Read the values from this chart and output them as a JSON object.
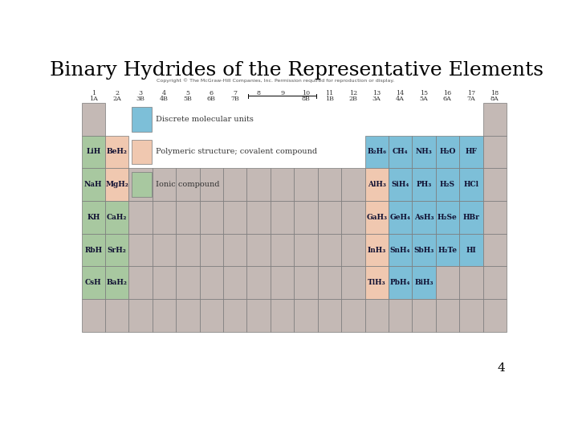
{
  "title": "Binary Hydrides of the Representative Elements",
  "page_num": "4",
  "copyright": "Copyright © The McGraw-Hill Companies, Inc. Permission required for reproduction or display.",
  "bg_color": "#ffffff",
  "cell_border_color": "#7a7a7a",
  "colors": {
    "ionic": "#a8c8a0",
    "polymeric": "#f0c8b0",
    "molecular": "#7dbfd8",
    "empty": "#c4b9b5",
    "white": "#ffffff"
  },
  "legend": [
    {
      "color": "#7dbfd8",
      "label": "Discrete molecular units"
    },
    {
      "color": "#f0c8b0",
      "label": "Polymeric structure; covalent compound"
    },
    {
      "color": "#a8c8a0",
      "label": "Ionic compound"
    }
  ],
  "cells": [
    {
      "row": 0,
      "col": 0,
      "text": "",
      "color": "empty",
      "bold": false
    },
    {
      "row": 0,
      "col": 17,
      "text": "",
      "color": "empty",
      "bold": false
    },
    {
      "row": 1,
      "col": 0,
      "text": "LiH",
      "color": "ionic",
      "bold": true
    },
    {
      "row": 1,
      "col": 1,
      "text": "BeH₂",
      "color": "polymeric",
      "bold": true
    },
    {
      "row": 1,
      "col": 12,
      "text": "B₂H₆",
      "color": "molecular",
      "bold": true
    },
    {
      "row": 1,
      "col": 13,
      "text": "CH₄",
      "color": "molecular",
      "bold": true
    },
    {
      "row": 1,
      "col": 14,
      "text": "NH₃",
      "color": "molecular",
      "bold": true
    },
    {
      "row": 1,
      "col": 15,
      "text": "H₂O",
      "color": "molecular",
      "bold": true
    },
    {
      "row": 1,
      "col": 16,
      "text": "HF",
      "color": "molecular",
      "bold": true
    },
    {
      "row": 2,
      "col": 0,
      "text": "NaH",
      "color": "ionic",
      "bold": true
    },
    {
      "row": 2,
      "col": 1,
      "text": "MgH₂",
      "color": "polymeric",
      "bold": true
    },
    {
      "row": 2,
      "col": 12,
      "text": "AlH₃",
      "color": "polymeric",
      "bold": true
    },
    {
      "row": 2,
      "col": 13,
      "text": "SiH₄",
      "color": "molecular",
      "bold": true
    },
    {
      "row": 2,
      "col": 14,
      "text": "PH₃",
      "color": "molecular",
      "bold": true
    },
    {
      "row": 2,
      "col": 15,
      "text": "H₂S",
      "color": "molecular",
      "bold": true
    },
    {
      "row": 2,
      "col": 16,
      "text": "HCl",
      "color": "molecular",
      "bold": true
    },
    {
      "row": 3,
      "col": 0,
      "text": "KH",
      "color": "ionic",
      "bold": true
    },
    {
      "row": 3,
      "col": 1,
      "text": "CaH₂",
      "color": "ionic",
      "bold": true
    },
    {
      "row": 3,
      "col": 12,
      "text": "GaH₃",
      "color": "polymeric",
      "bold": true
    },
    {
      "row": 3,
      "col": 13,
      "text": "GeH₄",
      "color": "molecular",
      "bold": true
    },
    {
      "row": 3,
      "col": 14,
      "text": "AsH₃",
      "color": "molecular",
      "bold": true
    },
    {
      "row": 3,
      "col": 15,
      "text": "H₂Se",
      "color": "molecular",
      "bold": true
    },
    {
      "row": 3,
      "col": 16,
      "text": "HBr",
      "color": "molecular",
      "bold": true
    },
    {
      "row": 4,
      "col": 0,
      "text": "RbH",
      "color": "ionic",
      "bold": true
    },
    {
      "row": 4,
      "col": 1,
      "text": "SrH₂",
      "color": "ionic",
      "bold": true
    },
    {
      "row": 4,
      "col": 12,
      "text": "InH₃",
      "color": "polymeric",
      "bold": true
    },
    {
      "row": 4,
      "col": 13,
      "text": "SnH₄",
      "color": "molecular",
      "bold": true
    },
    {
      "row": 4,
      "col": 14,
      "text": "SbH₃",
      "color": "molecular",
      "bold": true
    },
    {
      "row": 4,
      "col": 15,
      "text": "H₂Te",
      "color": "molecular",
      "bold": true
    },
    {
      "row": 4,
      "col": 16,
      "text": "HI",
      "color": "molecular",
      "bold": true
    },
    {
      "row": 5,
      "col": 0,
      "text": "CsH",
      "color": "ionic",
      "bold": true
    },
    {
      "row": 5,
      "col": 1,
      "text": "BaH₂",
      "color": "ionic",
      "bold": true
    },
    {
      "row": 5,
      "col": 12,
      "text": "TlH₃",
      "color": "polymeric",
      "bold": true
    },
    {
      "row": 5,
      "col": 13,
      "text": "PbH₄",
      "color": "molecular",
      "bold": true
    },
    {
      "row": 5,
      "col": 14,
      "text": "BiH₃",
      "color": "molecular",
      "bold": true
    },
    {
      "row": 6,
      "col": 0,
      "text": "",
      "color": "empty",
      "bold": false
    },
    {
      "row": 6,
      "col": 1,
      "text": "",
      "color": "empty",
      "bold": false
    },
    {
      "row": 6,
      "col": 17,
      "text": "",
      "color": "empty",
      "bold": false
    }
  ],
  "col_header_nums": [
    "1",
    "2",
    "3",
    "4",
    "5",
    "6",
    "7",
    "8",
    "9",
    "10",
    "11",
    "12",
    "13",
    "14",
    "15",
    "16",
    "17",
    "18"
  ],
  "col_header_lets": [
    "1A",
    "2A",
    "3B",
    "4B",
    "5B",
    "6B",
    "7B",
    "",
    "",
    "8B",
    "1B",
    "2B",
    "3A",
    "4A",
    "5A",
    "6A",
    "7A",
    "8A"
  ],
  "title_fontsize": 18,
  "cell_fontsize": 6.5,
  "header_fontsize": 5.8,
  "legend_fontsize": 7.0
}
